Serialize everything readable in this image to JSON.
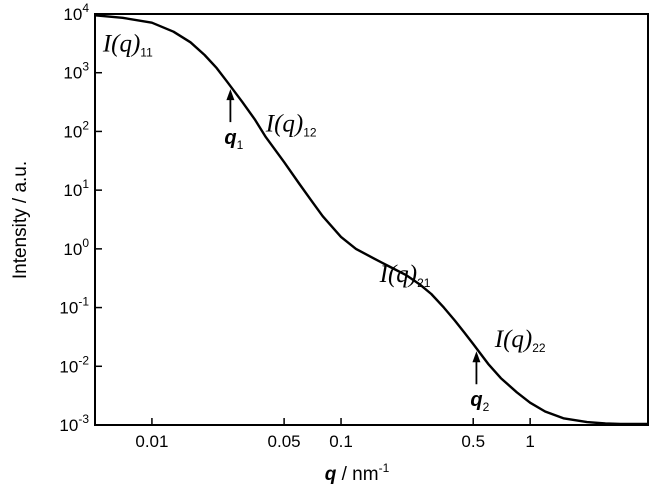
{
  "chart_data": {
    "type": "line",
    "title": "",
    "xscale": "log",
    "yscale": "log",
    "xlim": [
      0.005,
      4.2
    ],
    "ylim": [
      0.001,
      10000
    ],
    "xlabel": {
      "var": "q",
      "unit": " / nm",
      "exp": "-1"
    },
    "ylabel": "Intensity / a.u.",
    "xticks": [
      {
        "value": 0.01,
        "label": "0.01"
      },
      {
        "value": 0.05,
        "label": "0.05"
      },
      {
        "value": 0.1,
        "label": "0.1"
      },
      {
        "value": 0.5,
        "label": "0.5"
      },
      {
        "value": 1,
        "label": "1"
      }
    ],
    "yticks": [
      {
        "value": 10000,
        "base": "10",
        "exp": "4"
      },
      {
        "value": 1000,
        "base": "10",
        "exp": "3"
      },
      {
        "value": 100,
        "base": "10",
        "exp": "2"
      },
      {
        "value": 10,
        "base": "10",
        "exp": "1"
      },
      {
        "value": 1,
        "base": "10",
        "exp": "0"
      },
      {
        "value": 0.1,
        "base": "10",
        "exp": "-1"
      },
      {
        "value": 0.01,
        "base": "10",
        "exp": "-2"
      },
      {
        "value": 0.001,
        "base": "10",
        "exp": "-3"
      }
    ],
    "grid": false,
    "legend": "none",
    "series": [
      {
        "x": [
          0.005,
          0.007,
          0.01,
          0.013,
          0.016,
          0.019,
          0.022,
          0.025,
          0.03,
          0.035,
          0.04,
          0.05,
          0.06,
          0.07,
          0.08,
          0.1,
          0.12,
          0.15,
          0.18,
          0.22,
          0.26,
          0.3,
          0.35,
          0.4,
          0.45,
          0.5,
          0.6,
          0.7,
          0.85,
          1.0,
          1.2,
          1.5,
          2.0,
          2.5,
          3.0,
          3.5,
          4.2
        ],
        "y": [
          9500,
          8600,
          7100,
          5000,
          3300,
          2000,
          1200,
          700,
          320,
          160,
          80,
          30,
          13,
          6.5,
          3.6,
          1.6,
          1.0,
          0.68,
          0.5,
          0.36,
          0.25,
          0.17,
          0.1,
          0.06,
          0.037,
          0.024,
          0.011,
          0.0063,
          0.0036,
          0.0024,
          0.0017,
          0.0013,
          0.00112,
          0.00106,
          0.00104,
          0.00104,
          0.00104
        ]
      }
    ],
    "annotations": [
      {
        "main": "I(q)",
        "sub": "11",
        "x": 0.0055,
        "y": 2300
      },
      {
        "main": "I(q)",
        "sub": "12",
        "x": 0.04,
        "y": 100
      },
      {
        "main": "I(q)",
        "sub": "21",
        "x": 0.16,
        "y": 0.27
      },
      {
        "main": "I(q)",
        "sub": "22",
        "x": 0.65,
        "y": 0.0215
      }
    ],
    "markers": [
      {
        "label": "q",
        "sub": "1",
        "x": 0.026
      },
      {
        "label": "q",
        "sub": "2",
        "x": 0.52
      }
    ]
  }
}
